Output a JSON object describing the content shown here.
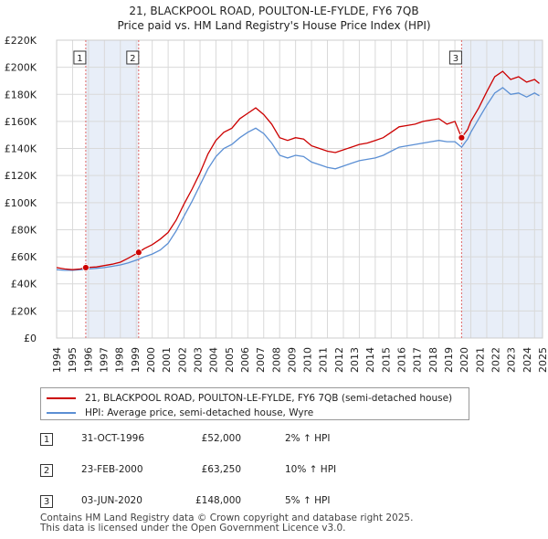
{
  "chart_data": {
    "type": "line",
    "title": "21, BLACKPOOL ROAD, POULTON-LE-FYLDE, FY6 7QB",
    "subtitle": "Price paid vs. HM Land Registry's House Price Index (HPI)",
    "xlim": [
      1995,
      2025.5
    ],
    "ylim": [
      0,
      220000
    ],
    "x_ticks": [
      1994,
      1995,
      1996,
      1997,
      1998,
      1999,
      2000,
      2001,
      2002,
      2003,
      2004,
      2005,
      2006,
      2007,
      2008,
      2009,
      2010,
      2011,
      2012,
      2013,
      2014,
      2015,
      2016,
      2017,
      2018,
      2019,
      2020,
      2021,
      2022,
      2023,
      2024,
      2025
    ],
    "y_ticks": [
      {
        "value": 0,
        "label": "£0"
      },
      {
        "value": 20000,
        "label": "£20K"
      },
      {
        "value": 40000,
        "label": "£40K"
      },
      {
        "value": 60000,
        "label": "£60K"
      },
      {
        "value": 80000,
        "label": "£80K"
      },
      {
        "value": 100000,
        "label": "£100K"
      },
      {
        "value": 120000,
        "label": "£120K"
      },
      {
        "value": 140000,
        "label": "£140K"
      },
      {
        "value": 160000,
        "label": "£160K"
      },
      {
        "value": 180000,
        "label": "£180K"
      },
      {
        "value": 200000,
        "label": "£200K"
      },
      {
        "value": 220000,
        "label": "£220K"
      }
    ],
    "shaded_regions": [
      [
        1996.83,
        2000.15
      ],
      [
        2020.42,
        2025.5
      ]
    ],
    "series": [
      {
        "name": "21, BLACKPOOL ROAD, POULTON-LE-FYLDE, FY6 7QB (semi-detached house)",
        "color": "#cc0000",
        "points": [
          [
            1995.0,
            52000
          ],
          [
            1995.5,
            51000
          ],
          [
            1996.0,
            50500
          ],
          [
            1996.5,
            51000
          ],
          [
            1996.83,
            52000
          ],
          [
            1997.5,
            52500
          ],
          [
            1998.0,
            53500
          ],
          [
            1998.5,
            54500
          ],
          [
            1999.0,
            56000
          ],
          [
            1999.5,
            59000
          ],
          [
            2000.15,
            63250
          ],
          [
            2000.5,
            66000
          ],
          [
            2001.0,
            69000
          ],
          [
            2001.5,
            73000
          ],
          [
            2002.0,
            78000
          ],
          [
            2002.5,
            87000
          ],
          [
            2003.0,
            99000
          ],
          [
            2003.5,
            110000
          ],
          [
            2004.0,
            122000
          ],
          [
            2004.5,
            136000
          ],
          [
            2005.0,
            146000
          ],
          [
            2005.5,
            152000
          ],
          [
            2006.0,
            155000
          ],
          [
            2006.5,
            162000
          ],
          [
            2007.0,
            166000
          ],
          [
            2007.5,
            170000
          ],
          [
            2008.0,
            165000
          ],
          [
            2008.5,
            158000
          ],
          [
            2009.0,
            148000
          ],
          [
            2009.5,
            146000
          ],
          [
            2010.0,
            148000
          ],
          [
            2010.5,
            147000
          ],
          [
            2011.0,
            142000
          ],
          [
            2011.5,
            140000
          ],
          [
            2012.0,
            138000
          ],
          [
            2012.5,
            137000
          ],
          [
            2013.0,
            139000
          ],
          [
            2013.5,
            141000
          ],
          [
            2014.0,
            143000
          ],
          [
            2014.5,
            144000
          ],
          [
            2015.0,
            146000
          ],
          [
            2015.5,
            148000
          ],
          [
            2016.0,
            152000
          ],
          [
            2016.5,
            156000
          ],
          [
            2017.0,
            157000
          ],
          [
            2017.5,
            158000
          ],
          [
            2018.0,
            160000
          ],
          [
            2018.5,
            161000
          ],
          [
            2019.0,
            162000
          ],
          [
            2019.5,
            158000
          ],
          [
            2020.0,
            160000
          ],
          [
            2020.42,
            148000
          ],
          [
            2020.8,
            154000
          ],
          [
            2021.0,
            160000
          ],
          [
            2021.5,
            170000
          ],
          [
            2022.0,
            182000
          ],
          [
            2022.5,
            193000
          ],
          [
            2023.0,
            197000
          ],
          [
            2023.5,
            191000
          ],
          [
            2024.0,
            193000
          ],
          [
            2024.5,
            189000
          ],
          [
            2025.0,
            191000
          ],
          [
            2025.3,
            188000
          ]
        ]
      },
      {
        "name": "HPI: Average price, semi-detached house, Wyre",
        "color": "#5b8fd4",
        "points": [
          [
            1995.0,
            50500
          ],
          [
            1995.5,
            50000
          ],
          [
            1996.0,
            50000
          ],
          [
            1996.5,
            50500
          ],
          [
            1997.0,
            51000
          ],
          [
            1997.5,
            51500
          ],
          [
            1998.0,
            52000
          ],
          [
            1998.5,
            53000
          ],
          [
            1999.0,
            54000
          ],
          [
            1999.5,
            55500
          ],
          [
            2000.0,
            57500
          ],
          [
            2000.5,
            60000
          ],
          [
            2001.0,
            62000
          ],
          [
            2001.5,
            65000
          ],
          [
            2002.0,
            70000
          ],
          [
            2002.5,
            79000
          ],
          [
            2003.0,
            90000
          ],
          [
            2003.5,
            101000
          ],
          [
            2004.0,
            113000
          ],
          [
            2004.5,
            125000
          ],
          [
            2005.0,
            134000
          ],
          [
            2005.5,
            140000
          ],
          [
            2006.0,
            143000
          ],
          [
            2006.5,
            148000
          ],
          [
            2007.0,
            152000
          ],
          [
            2007.5,
            155000
          ],
          [
            2008.0,
            151000
          ],
          [
            2008.5,
            144000
          ],
          [
            2009.0,
            135000
          ],
          [
            2009.5,
            133000
          ],
          [
            2010.0,
            135000
          ],
          [
            2010.5,
            134000
          ],
          [
            2011.0,
            130000
          ],
          [
            2011.5,
            128000
          ],
          [
            2012.0,
            126000
          ],
          [
            2012.5,
            125000
          ],
          [
            2013.0,
            127000
          ],
          [
            2013.5,
            129000
          ],
          [
            2014.0,
            131000
          ],
          [
            2014.5,
            132000
          ],
          [
            2015.0,
            133000
          ],
          [
            2015.5,
            135000
          ],
          [
            2016.0,
            138000
          ],
          [
            2016.5,
            141000
          ],
          [
            2017.0,
            142000
          ],
          [
            2017.5,
            143000
          ],
          [
            2018.0,
            144000
          ],
          [
            2018.5,
            145000
          ],
          [
            2019.0,
            146000
          ],
          [
            2019.5,
            145000
          ],
          [
            2020.0,
            145000
          ],
          [
            2020.42,
            141000
          ],
          [
            2020.8,
            147000
          ],
          [
            2021.0,
            152000
          ],
          [
            2021.5,
            162000
          ],
          [
            2022.0,
            172000
          ],
          [
            2022.5,
            181000
          ],
          [
            2023.0,
            185000
          ],
          [
            2023.5,
            180000
          ],
          [
            2024.0,
            181000
          ],
          [
            2024.5,
            178000
          ],
          [
            2025.0,
            181000
          ],
          [
            2025.3,
            179000
          ]
        ]
      }
    ],
    "markers": [
      {
        "label": "1",
        "x": 1996.83,
        "y": 52000
      },
      {
        "label": "2",
        "x": 2000.15,
        "y": 63250
      },
      {
        "label": "3",
        "x": 2020.42,
        "y": 148000
      }
    ]
  },
  "legend": {
    "property_label": "21, BLACKPOOL ROAD, POULTON-LE-FYLDE, FY6 7QB (semi-detached house)",
    "hpi_label": "HPI: Average price, semi-detached house, Wyre"
  },
  "sales": [
    {
      "num": "1",
      "date": "31-OCT-1996",
      "price": "£52,000",
      "hpi": "2% ↑ HPI"
    },
    {
      "num": "2",
      "date": "23-FEB-2000",
      "price": "£63,250",
      "hpi": "10% ↑ HPI"
    },
    {
      "num": "3",
      "date": "03-JUN-2020",
      "price": "£148,000",
      "hpi": "5% ↑ HPI"
    }
  ],
  "footer": {
    "line1": "Contains HM Land Registry data © Crown copyright and database right 2025.",
    "line2": "This data is licensed under the Open Government Licence v3.0."
  }
}
